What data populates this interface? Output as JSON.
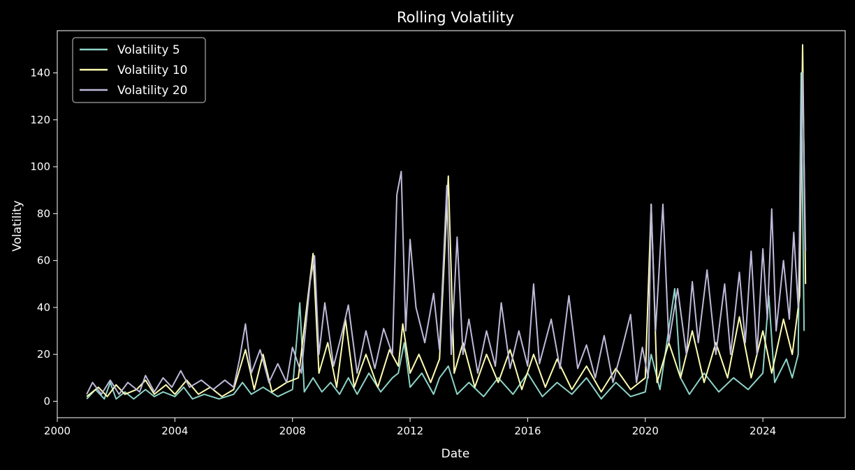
{
  "chart_data": {
    "type": "line",
    "title": "Rolling Volatility",
    "xlabel": "Date",
    "ylabel": "Volatility",
    "xlim": [
      2000.0,
      2026.8
    ],
    "ylim": [
      -7,
      158
    ],
    "x_ticks": [
      2000,
      2004,
      2008,
      2012,
      2016,
      2020,
      2024
    ],
    "x_tick_labels": [
      "2000",
      "2004",
      "2008",
      "2012",
      "2016",
      "2020",
      "2024"
    ],
    "y_ticks": [
      0,
      20,
      40,
      60,
      80,
      100,
      120,
      140
    ],
    "y_tick_labels": [
      "0",
      "20",
      "40",
      "60",
      "80",
      "100",
      "120",
      "140"
    ],
    "grid": false,
    "legend_position": "top-left",
    "background": "#000000",
    "series": [
      {
        "name": "Volatility 5",
        "color": "#8dd3c7",
        "points": [
          [
            2001.0,
            1
          ],
          [
            2001.3,
            5
          ],
          [
            2001.6,
            1
          ],
          [
            2001.8,
            8
          ],
          [
            2002.0,
            1
          ],
          [
            2002.3,
            4
          ],
          [
            2002.6,
            1
          ],
          [
            2003.0,
            5
          ],
          [
            2003.3,
            2
          ],
          [
            2003.6,
            4
          ],
          [
            2004.0,
            2
          ],
          [
            2004.3,
            6
          ],
          [
            2004.6,
            1
          ],
          [
            2005.0,
            3
          ],
          [
            2005.5,
            1
          ],
          [
            2006.0,
            3
          ],
          [
            2006.3,
            8
          ],
          [
            2006.6,
            3
          ],
          [
            2007.0,
            6
          ],
          [
            2007.5,
            2
          ],
          [
            2008.0,
            5
          ],
          [
            2008.25,
            42
          ],
          [
            2008.4,
            4
          ],
          [
            2008.7,
            10
          ],
          [
            2009.0,
            4
          ],
          [
            2009.3,
            8
          ],
          [
            2009.6,
            3
          ],
          [
            2009.9,
            10
          ],
          [
            2010.2,
            3
          ],
          [
            2010.6,
            12
          ],
          [
            2011.0,
            4
          ],
          [
            2011.4,
            10
          ],
          [
            2011.6,
            12
          ],
          [
            2011.8,
            25
          ],
          [
            2012.0,
            6
          ],
          [
            2012.4,
            12
          ],
          [
            2012.8,
            3
          ],
          [
            2013.0,
            10
          ],
          [
            2013.3,
            15
          ],
          [
            2013.6,
            3
          ],
          [
            2014.0,
            8
          ],
          [
            2014.5,
            2
          ],
          [
            2015.0,
            10
          ],
          [
            2015.5,
            3
          ],
          [
            2016.0,
            12
          ],
          [
            2016.5,
            2
          ],
          [
            2017.0,
            8
          ],
          [
            2017.5,
            3
          ],
          [
            2018.0,
            10
          ],
          [
            2018.5,
            1
          ],
          [
            2019.0,
            8
          ],
          [
            2019.5,
            2
          ],
          [
            2020.0,
            4
          ],
          [
            2020.2,
            20
          ],
          [
            2020.5,
            5
          ],
          [
            2021.0,
            48
          ],
          [
            2021.2,
            10
          ],
          [
            2021.5,
            3
          ],
          [
            2022.0,
            12
          ],
          [
            2022.5,
            4
          ],
          [
            2023.0,
            10
          ],
          [
            2023.5,
            5
          ],
          [
            2024.0,
            12
          ],
          [
            2024.2,
            45
          ],
          [
            2024.4,
            8
          ],
          [
            2024.8,
            18
          ],
          [
            2025.0,
            10
          ],
          [
            2025.2,
            20
          ],
          [
            2025.3,
            140
          ],
          [
            2025.4,
            30
          ]
        ]
      },
      {
        "name": "Volatility 10",
        "color": "#ffffb3",
        "points": [
          [
            2001.0,
            2
          ],
          [
            2001.4,
            6
          ],
          [
            2001.7,
            2
          ],
          [
            2002.0,
            7
          ],
          [
            2002.3,
            3
          ],
          [
            2002.7,
            5
          ],
          [
            2003.0,
            9
          ],
          [
            2003.3,
            3
          ],
          [
            2003.7,
            7
          ],
          [
            2004.0,
            3
          ],
          [
            2004.4,
            9
          ],
          [
            2004.8,
            3
          ],
          [
            2005.2,
            6
          ],
          [
            2005.6,
            2
          ],
          [
            2006.0,
            5
          ],
          [
            2006.4,
            22
          ],
          [
            2006.7,
            5
          ],
          [
            2007.0,
            20
          ],
          [
            2007.3,
            4
          ],
          [
            2007.8,
            8
          ],
          [
            2008.2,
            10
          ],
          [
            2008.7,
            63
          ],
          [
            2008.9,
            12
          ],
          [
            2009.2,
            25
          ],
          [
            2009.5,
            6
          ],
          [
            2009.8,
            35
          ],
          [
            2010.1,
            6
          ],
          [
            2010.5,
            20
          ],
          [
            2010.9,
            6
          ],
          [
            2011.3,
            22
          ],
          [
            2011.6,
            15
          ],
          [
            2011.75,
            33
          ],
          [
            2012.0,
            12
          ],
          [
            2012.3,
            20
          ],
          [
            2012.7,
            8
          ],
          [
            2013.0,
            18
          ],
          [
            2013.3,
            96
          ],
          [
            2013.5,
            12
          ],
          [
            2013.8,
            25
          ],
          [
            2014.2,
            6
          ],
          [
            2014.6,
            20
          ],
          [
            2015.0,
            8
          ],
          [
            2015.4,
            22
          ],
          [
            2015.8,
            5
          ],
          [
            2016.2,
            20
          ],
          [
            2016.6,
            6
          ],
          [
            2017.0,
            18
          ],
          [
            2017.5,
            5
          ],
          [
            2018.0,
            15
          ],
          [
            2018.5,
            4
          ],
          [
            2019.0,
            14
          ],
          [
            2019.5,
            5
          ],
          [
            2020.0,
            10
          ],
          [
            2020.2,
            84
          ],
          [
            2020.4,
            8
          ],
          [
            2020.8,
            25
          ],
          [
            2021.2,
            10
          ],
          [
            2021.6,
            30
          ],
          [
            2022.0,
            8
          ],
          [
            2022.4,
            25
          ],
          [
            2022.8,
            10
          ],
          [
            2023.2,
            36
          ],
          [
            2023.6,
            10
          ],
          [
            2024.0,
            30
          ],
          [
            2024.3,
            12
          ],
          [
            2024.7,
            35
          ],
          [
            2025.0,
            20
          ],
          [
            2025.25,
            45
          ],
          [
            2025.35,
            152
          ],
          [
            2025.45,
            50
          ]
        ]
      },
      {
        "name": "Volatility 20",
        "color": "#bebada",
        "points": [
          [
            2001.0,
            3
          ],
          [
            2001.2,
            8
          ],
          [
            2001.5,
            3
          ],
          [
            2001.8,
            9
          ],
          [
            2002.1,
            3
          ],
          [
            2002.4,
            8
          ],
          [
            2002.8,
            4
          ],
          [
            2003.0,
            11
          ],
          [
            2003.3,
            4
          ],
          [
            2003.6,
            10
          ],
          [
            2003.9,
            6
          ],
          [
            2004.2,
            13
          ],
          [
            2004.5,
            6
          ],
          [
            2004.9,
            9
          ],
          [
            2005.3,
            5
          ],
          [
            2005.7,
            9
          ],
          [
            2006.0,
            6
          ],
          [
            2006.2,
            18
          ],
          [
            2006.4,
            33
          ],
          [
            2006.6,
            12
          ],
          [
            2006.9,
            22
          ],
          [
            2007.2,
            8
          ],
          [
            2007.5,
            16
          ],
          [
            2007.8,
            8
          ],
          [
            2008.0,
            23
          ],
          [
            2008.3,
            12
          ],
          [
            2008.6,
            51
          ],
          [
            2008.75,
            62
          ],
          [
            2008.9,
            20
          ],
          [
            2009.1,
            42
          ],
          [
            2009.4,
            15
          ],
          [
            2009.7,
            30
          ],
          [
            2009.9,
            41
          ],
          [
            2010.2,
            12
          ],
          [
            2010.5,
            30
          ],
          [
            2010.8,
            14
          ],
          [
            2011.1,
            31
          ],
          [
            2011.4,
            20
          ],
          [
            2011.55,
            88
          ],
          [
            2011.7,
            98
          ],
          [
            2011.85,
            30
          ],
          [
            2012.0,
            69
          ],
          [
            2012.2,
            40
          ],
          [
            2012.5,
            25
          ],
          [
            2012.8,
            46
          ],
          [
            2013.0,
            22
          ],
          [
            2013.25,
            92
          ],
          [
            2013.4,
            20
          ],
          [
            2013.6,
            70
          ],
          [
            2013.8,
            20
          ],
          [
            2014.0,
            35
          ],
          [
            2014.3,
            12
          ],
          [
            2014.6,
            30
          ],
          [
            2014.9,
            15
          ],
          [
            2015.1,
            42
          ],
          [
            2015.4,
            14
          ],
          [
            2015.7,
            30
          ],
          [
            2016.0,
            15
          ],
          [
            2016.2,
            50
          ],
          [
            2016.4,
            16
          ],
          [
            2016.8,
            35
          ],
          [
            2017.1,
            14
          ],
          [
            2017.4,
            45
          ],
          [
            2017.7,
            14
          ],
          [
            2018.0,
            24
          ],
          [
            2018.3,
            10
          ],
          [
            2018.6,
            28
          ],
          [
            2018.9,
            8
          ],
          [
            2019.2,
            22
          ],
          [
            2019.5,
            37
          ],
          [
            2019.7,
            8
          ],
          [
            2019.9,
            23
          ],
          [
            2020.1,
            10
          ],
          [
            2020.2,
            84
          ],
          [
            2020.35,
            30
          ],
          [
            2020.6,
            84
          ],
          [
            2020.8,
            25
          ],
          [
            2021.1,
            48
          ],
          [
            2021.4,
            20
          ],
          [
            2021.6,
            51
          ],
          [
            2021.8,
            25
          ],
          [
            2022.1,
            56
          ],
          [
            2022.4,
            20
          ],
          [
            2022.7,
            50
          ],
          [
            2022.9,
            20
          ],
          [
            2023.2,
            55
          ],
          [
            2023.4,
            25
          ],
          [
            2023.6,
            64
          ],
          [
            2023.8,
            20
          ],
          [
            2024.0,
            65
          ],
          [
            2024.15,
            35
          ],
          [
            2024.3,
            82
          ],
          [
            2024.45,
            30
          ],
          [
            2024.7,
            60
          ],
          [
            2024.9,
            35
          ],
          [
            2025.05,
            72
          ],
          [
            2025.2,
            40
          ],
          [
            2025.35,
            140
          ],
          [
            2025.45,
            64
          ]
        ]
      }
    ]
  }
}
